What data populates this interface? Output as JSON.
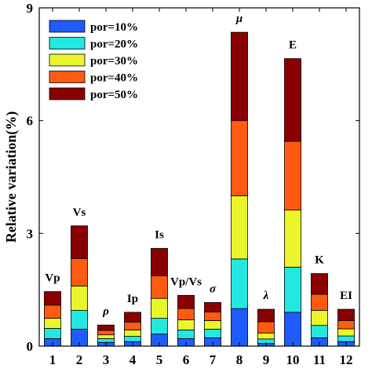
{
  "chart_data": {
    "type": "bar",
    "stacked": true,
    "ylabel": "Relative variation(%)",
    "ylim": [
      0,
      9
    ],
    "yticks": [
      0,
      3,
      6,
      9
    ],
    "categories": [
      "1",
      "2",
      "3",
      "4",
      "5",
      "6",
      "7",
      "8",
      "9",
      "10",
      "11",
      "12"
    ],
    "bar_labels": [
      "Vp",
      "Vs",
      "ρ",
      "Ip",
      "Is",
      "Vp/Vs",
      "σ",
      "μ",
      "λ",
      "E",
      "K",
      "EI"
    ],
    "bar_label_italic": [
      false,
      false,
      true,
      false,
      false,
      false,
      true,
      true,
      true,
      false,
      false,
      false
    ],
    "series": [
      {
        "name": "por=10%",
        "color": "#1f5bff",
        "values": [
          0.2,
          0.45,
          0.1,
          0.12,
          0.32,
          0.2,
          0.22,
          1.0,
          0.07,
          0.9,
          0.22,
          0.12
        ]
      },
      {
        "name": "por=20%",
        "color": "#22e8e0",
        "values": [
          0.27,
          0.5,
          0.1,
          0.14,
          0.42,
          0.23,
          0.23,
          1.32,
          0.12,
          1.2,
          0.33,
          0.15
        ]
      },
      {
        "name": "por=30%",
        "color": "#eaf52a",
        "values": [
          0.27,
          0.65,
          0.1,
          0.17,
          0.53,
          0.27,
          0.23,
          1.68,
          0.16,
          1.52,
          0.4,
          0.19
        ]
      },
      {
        "name": "por=40%",
        "color": "#ff5a12",
        "values": [
          0.35,
          0.73,
          0.12,
          0.21,
          0.6,
          0.3,
          0.23,
          2.0,
          0.3,
          1.83,
          0.43,
          0.22
        ]
      },
      {
        "name": "por=50%",
        "color": "#8a0000",
        "values": [
          0.36,
          0.87,
          0.14,
          0.26,
          0.73,
          0.35,
          0.25,
          2.35,
          0.33,
          2.2,
          0.55,
          0.3
        ]
      }
    ],
    "grid": false,
    "legend": "top-left"
  }
}
